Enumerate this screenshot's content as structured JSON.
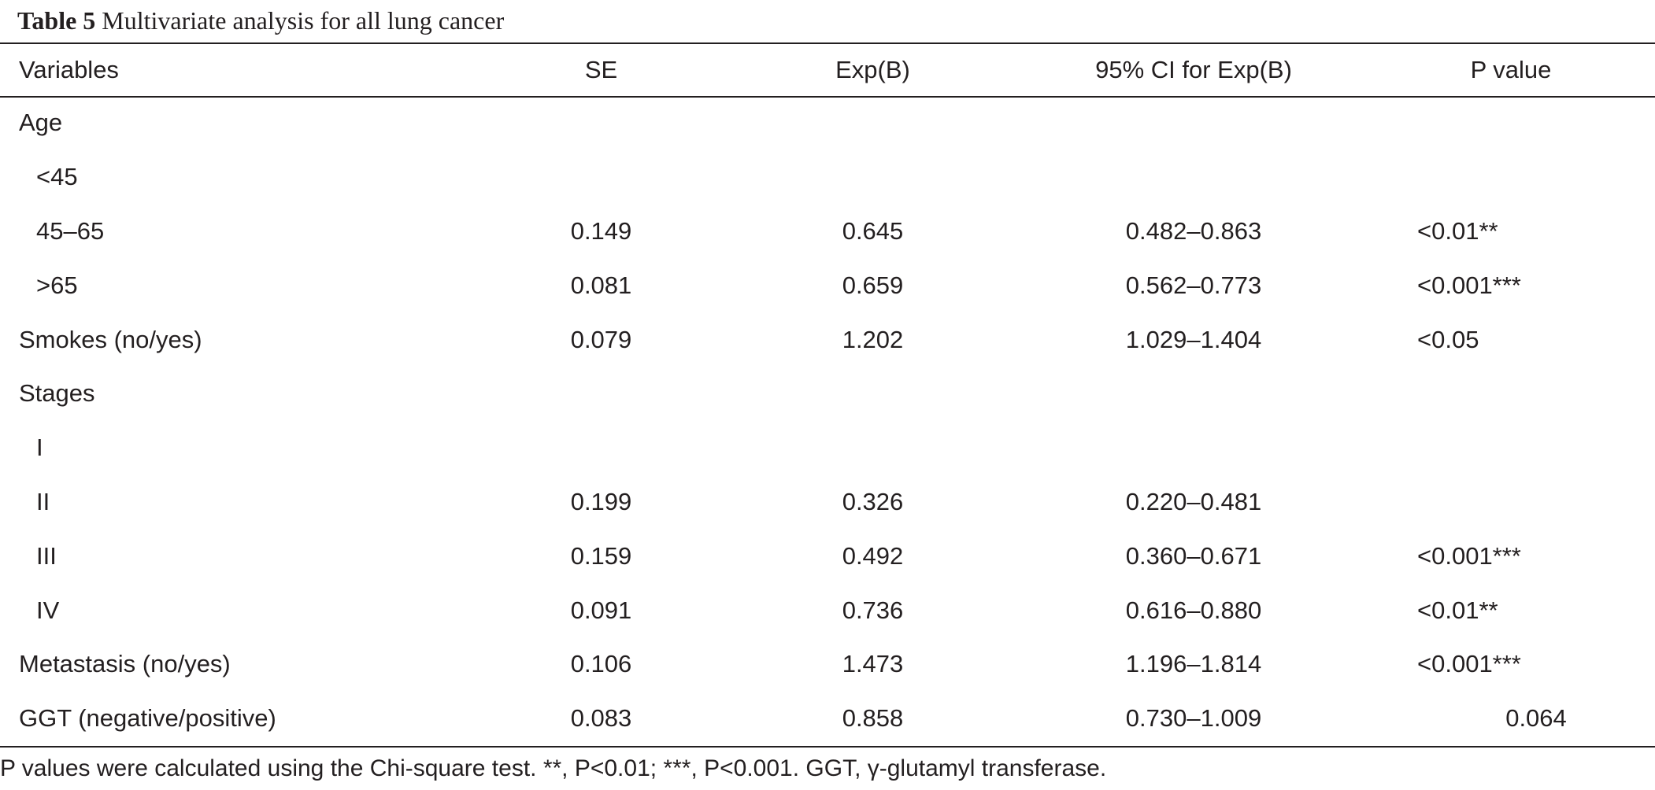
{
  "caption": {
    "label": "Table 5",
    "title": "Multivariate analysis for all lung cancer"
  },
  "columns": [
    "Variables",
    "SE",
    "Exp(B)",
    "95% CI for Exp(B)",
    "P value"
  ],
  "rows": [
    {
      "variable": "Age",
      "se": "",
      "exp_b": "",
      "ci": "",
      "p": "",
      "indent": false
    },
    {
      "variable": "<45",
      "se": "",
      "exp_b": "",
      "ci": "",
      "p": "",
      "indent": true
    },
    {
      "variable": "45–65",
      "se": "0.149",
      "exp_b": "0.645",
      "ci": "0.482–0.863",
      "p": "<0.01**",
      "indent": true
    },
    {
      "variable": ">65",
      "se": "0.081",
      "exp_b": "0.659",
      "ci": "0.562–0.773",
      "p": "<0.001***",
      "indent": true
    },
    {
      "variable": "Smokes (no/yes)",
      "se": "0.079",
      "exp_b": "1.202",
      "ci": "1.029–1.404",
      "p": "<0.05",
      "indent": false
    },
    {
      "variable": "Stages",
      "se": "",
      "exp_b": "",
      "ci": "",
      "p": "",
      "indent": false
    },
    {
      "variable": "I",
      "se": "",
      "exp_b": "",
      "ci": "",
      "p": "",
      "indent": true
    },
    {
      "variable": "II",
      "se": "0.199",
      "exp_b": "0.326",
      "ci": "0.220–0.481",
      "p": "",
      "indent": true
    },
    {
      "variable": "III",
      "se": "0.159",
      "exp_b": "0.492",
      "ci": "0.360–0.671",
      "p": "<0.001***",
      "indent": true
    },
    {
      "variable": "IV",
      "se": "0.091",
      "exp_b": "0.736",
      "ci": "0.616–0.880",
      "p": "<0.01**",
      "indent": true
    },
    {
      "variable": "Metastasis (no/yes)",
      "se": "0.106",
      "exp_b": "1.473",
      "ci": "1.196–1.814",
      "p": "<0.001***",
      "indent": false
    },
    {
      "variable": "GGT (negative/positive)",
      "se": "0.083",
      "exp_b": "0.858",
      "ci": "0.730–1.009",
      "p": "0.064",
      "indent": false,
      "p_centered": true
    }
  ],
  "footnote": "P values were calculated using the Chi-square test. **, P<0.01; ***, P<0.001. GGT, γ-glutamyl transferase."
}
